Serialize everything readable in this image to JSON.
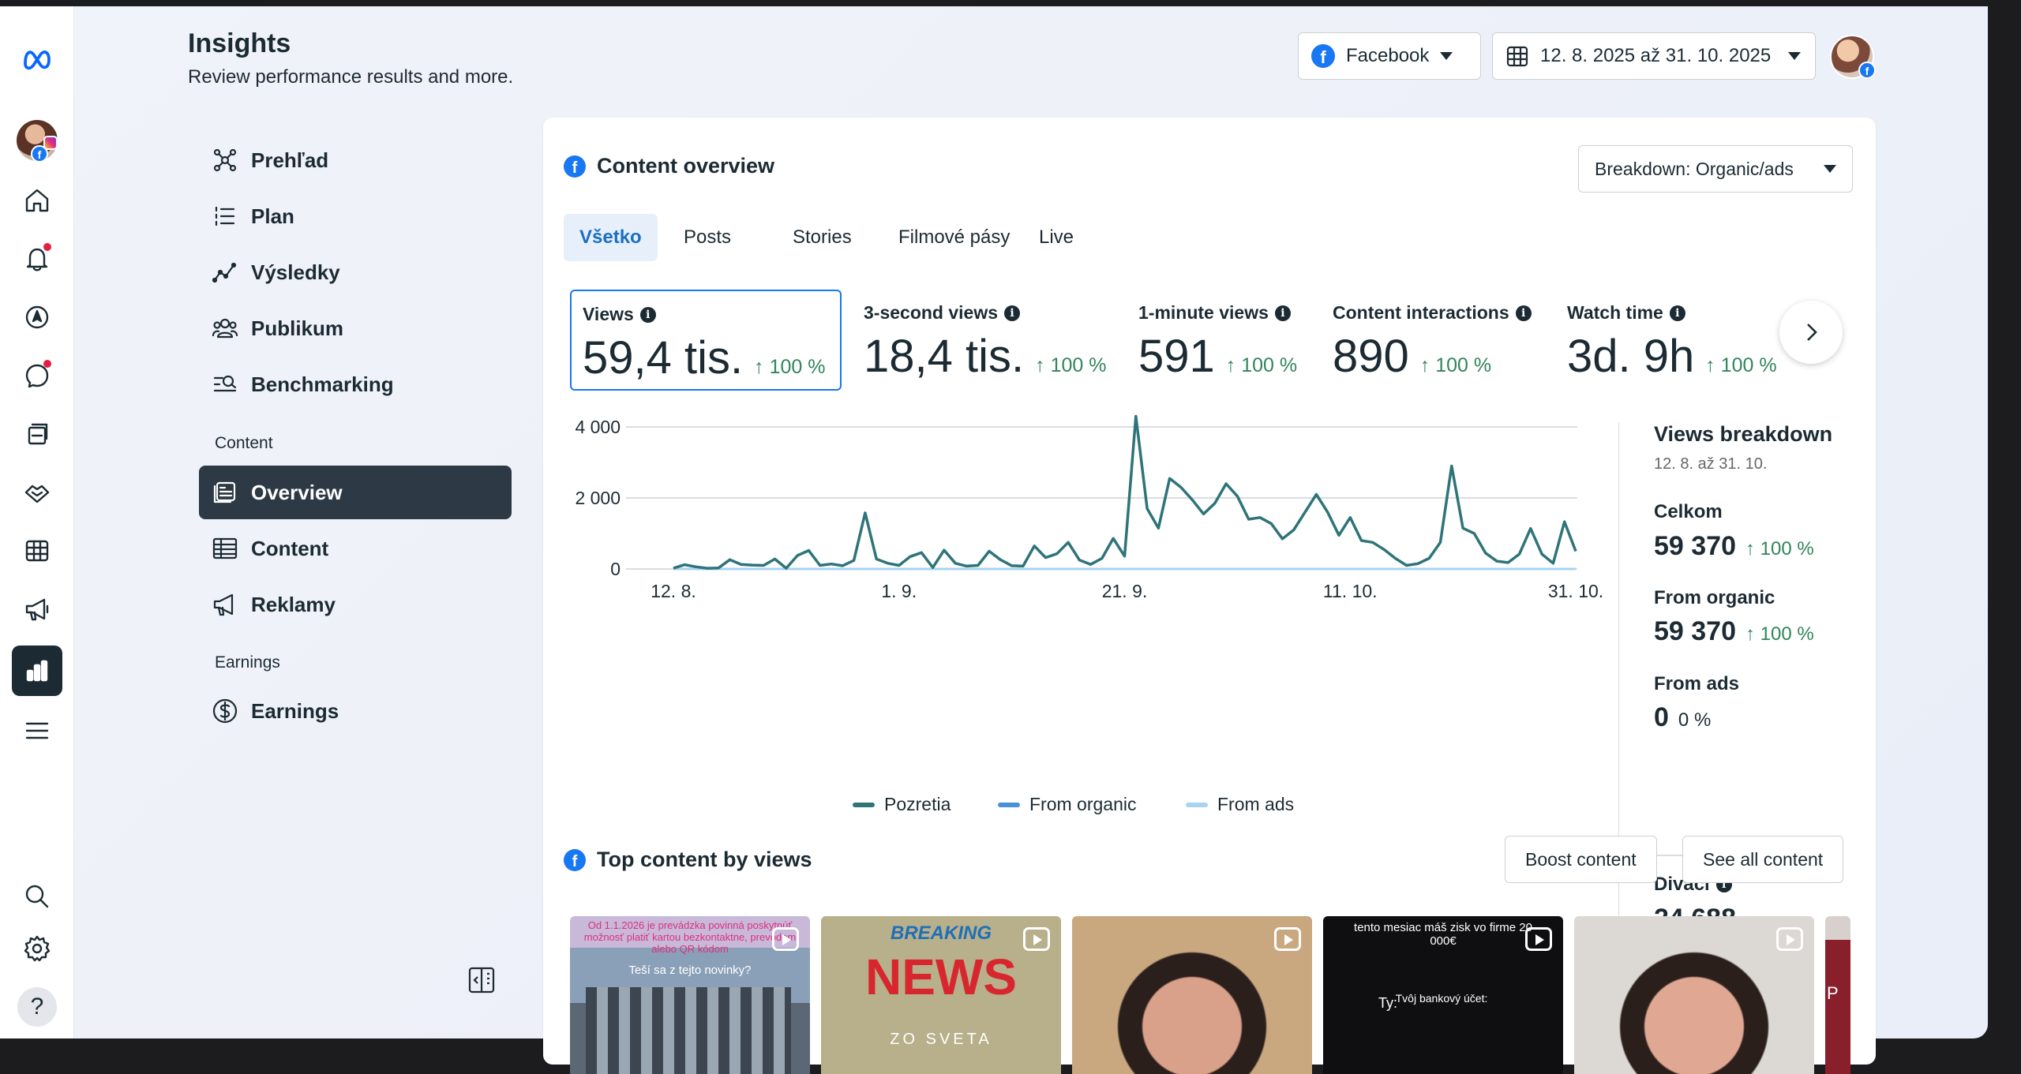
{
  "app": {
    "title": "Insights",
    "subtitle": "Review performance results and more."
  },
  "rail": {
    "items": [
      "meta-logo",
      "profile",
      "home",
      "notifications",
      "explore",
      "messages",
      "posts",
      "partnerships",
      "table",
      "ads",
      "insights",
      "menu",
      "search",
      "settings",
      "help"
    ]
  },
  "header": {
    "platform": "Facebook",
    "date_range": "12. 8. 2025 až 31. 10. 2025"
  },
  "sidebar": {
    "items": [
      {
        "label": "Prehľad",
        "icon": "network-icon"
      },
      {
        "label": "Plan",
        "icon": "list-icon"
      },
      {
        "label": "Výsledky",
        "icon": "trend-icon"
      },
      {
        "label": "Publikum",
        "icon": "people-icon"
      },
      {
        "label": "Benchmarking",
        "icon": "benchmark-icon"
      }
    ],
    "section_content": "Content",
    "content_items": [
      {
        "label": "Overview",
        "icon": "overview-icon"
      },
      {
        "label": "Content",
        "icon": "table-icon"
      },
      {
        "label": "Reklamy",
        "icon": "megaphone-icon"
      }
    ],
    "section_earnings": "Earnings",
    "earnings_items": [
      {
        "label": "Earnings",
        "icon": "dollar-icon"
      }
    ]
  },
  "overview": {
    "title": "Content overview",
    "breakdown": "Breakdown: Organic/ads",
    "tabs": [
      "Všetko",
      "Posts",
      "Stories",
      "Filmové pásy",
      "Live"
    ],
    "metrics": [
      {
        "label": "Views",
        "value": "59,4 tis.",
        "change": "100 %"
      },
      {
        "label": "3-second views",
        "value": "18,4 tis.",
        "change": "100 %"
      },
      {
        "label": "1-minute views",
        "value": "591",
        "change": "100 %"
      },
      {
        "label": "Content interactions",
        "value": "890",
        "change": "100 %"
      },
      {
        "label": "Watch time",
        "value": "3d. 9h",
        "change": "100 %"
      }
    ]
  },
  "chart_data": {
    "type": "line",
    "x_tick_labels": [
      "12. 8.",
      "1. 9.",
      "21. 9.",
      "11. 10.",
      "31. 10."
    ],
    "y_tick_labels": [
      "0",
      "2 000",
      "4 000"
    ],
    "ylim": [
      0,
      4500
    ],
    "grid": true,
    "legend_position": "bottom",
    "series": [
      {
        "name": "Pozretia",
        "color": "#2e7478",
        "values": [
          20,
          120,
          60,
          20,
          30,
          260,
          130,
          110,
          100,
          280,
          20,
          380,
          520,
          100,
          140,
          90,
          240,
          1580,
          280,
          160,
          100,
          350,
          460,
          40,
          530,
          160,
          80,
          100,
          500,
          260,
          90,
          80,
          650,
          320,
          430,
          750,
          250,
          130,
          300,
          860,
          360,
          4300,
          1700,
          1150,
          2550,
          2300,
          1950,
          1550,
          1850,
          2400,
          2050,
          1400,
          1450,
          1280,
          850,
          1100,
          1600,
          2100,
          1600,
          950,
          1450,
          800,
          750,
          550,
          300,
          100,
          150,
          300,
          750,
          2900,
          1150,
          1000,
          450,
          220,
          180,
          420,
          1140,
          420,
          160,
          1330,
          500
        ]
      },
      {
        "name": "From organic",
        "color": "#4a90d9",
        "values": []
      },
      {
        "name": "From ads",
        "color": "#a8d4f2",
        "values": []
      }
    ]
  },
  "views_breakdown": {
    "title": "Views breakdown",
    "date": "12. 8. až 31. 10.",
    "rows": [
      {
        "label": "Celkom",
        "value": "59 370",
        "change": "100 %"
      },
      {
        "label": "From organic",
        "value": "59 370",
        "change": "100 %"
      },
      {
        "label": "From ads",
        "value": "0",
        "change": "0 %"
      }
    ],
    "viewers_label": "Diváci",
    "viewers_value": "24 688"
  },
  "top_content": {
    "title": "Top content by views",
    "boost_label": "Boost content",
    "see_all_label": "See all content",
    "thumbs": [
      {
        "text_top": "Od 1.1.2026 je prevádzka povinná poskytnúť možnosť platiť kartou bezkontaktne, prevodom alebo QR kódom",
        "text_mid": "Teší sa z tejto novinky?"
      },
      {
        "text_top": "BREAKING",
        "text_mid": "NEWS",
        "text_bottom": "ZO SVETA"
      },
      {
        "text_top": ""
      },
      {
        "text_top": "tento mesiac máš zisk vo firme 20 000€",
        "text_mid": "Ty:",
        "text_right": "Tvôj bankový účet:"
      },
      {
        "text_top": ""
      }
    ],
    "partial_thumb_letter": "P"
  }
}
